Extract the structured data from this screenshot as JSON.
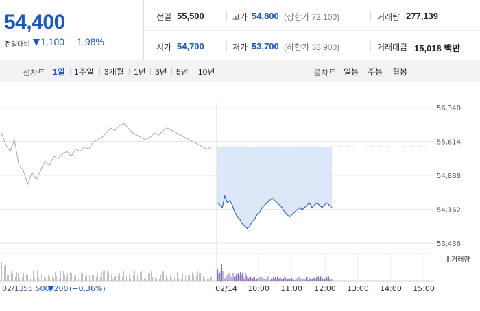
{
  "summary": {
    "price": "54,400",
    "change_label": "전일대비",
    "change_value": "1,100",
    "change_pct": "−1.98%",
    "prev_close_label": "전일",
    "prev_close": "55,500",
    "high_label": "고가",
    "high": "54,800",
    "upper_limit": "(상한가 72,100)",
    "volume_label": "거래량",
    "volume": "277,139",
    "open_label": "시가",
    "open": "54,700",
    "low_label": "저가",
    "low": "53,700",
    "lower_limit": "(하한가 38,900)",
    "amount_label": "거래대금",
    "amount": "15,018 백만",
    "colors": {
      "down": "#1a56c8",
      "text": "#222222"
    }
  },
  "tabs": {
    "line_chart_label": "선차트",
    "line_tabs": [
      "1일",
      "1주일",
      "3개월",
      "1년",
      "3년",
      "5년",
      "10년"
    ],
    "active_line_tab": "1일",
    "candle_chart_label": "봉차트",
    "candle_tabs": [
      "일봉",
      "주봉",
      "월봉"
    ]
  },
  "chart_data": {
    "type": "line",
    "y_ticks": [
      "56,340",
      "55,614",
      "54,888",
      "54,162",
      "53,436"
    ],
    "x_ticks": [
      "02/14",
      "10:00",
      "11:00",
      "12:00",
      "13:00",
      "14:00",
      "15:00"
    ],
    "ylim": [
      53436,
      56340
    ],
    "prev_close_line": 55500,
    "volume_legend": "거래량",
    "prev_day": {
      "date": "02/13",
      "close_text": "55,500",
      "change_text": "▼200",
      "pct_text": "(−0.36%)",
      "values": [
        55800,
        55550,
        55400,
        55650,
        55100,
        55000,
        54700,
        54950,
        54800,
        55000,
        55200,
        55100,
        55300,
        55250,
        55350,
        55400,
        55300,
        55450,
        55400,
        55500,
        55450,
        55600,
        55650,
        55700,
        55800,
        55900,
        55850,
        55950,
        56000,
        55900,
        55800,
        55750,
        55700,
        55650,
        55700,
        55800,
        55750,
        55850,
        55900,
        55850,
        55800,
        55750,
        55700,
        55650,
        55600,
        55550,
        55500,
        55450,
        55500
      ]
    },
    "today": {
      "series_name": "",
      "values": [
        54300,
        54250,
        54200,
        54450,
        54300,
        54350,
        54250,
        54100,
        54000,
        53950,
        53850,
        53800,
        53750,
        53800,
        53900,
        53950,
        54050,
        54100,
        54200,
        54250,
        54300,
        54350,
        54400,
        54350,
        54300,
        54250,
        54200,
        54100,
        54050,
        54000,
        54050,
        54100,
        54150,
        54200,
        54150,
        54200,
        54250,
        54300,
        54200,
        54250,
        54300,
        54250,
        54200,
        54250,
        54300,
        54250,
        54200
      ]
    },
    "grid": true
  }
}
